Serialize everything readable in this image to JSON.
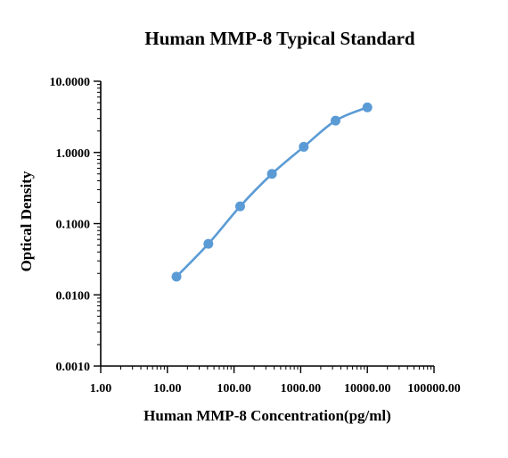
{
  "chart_data": {
    "type": "line",
    "title": "Human MMP-8 Typical Standard",
    "xlabel": "Human MMP-8 Concentration(pg/ml)",
    "ylabel": "Optical Density",
    "x_scale": "log",
    "y_scale": "log",
    "xlim": [
      1,
      100000
    ],
    "ylim": [
      0.001,
      10
    ],
    "x_ticks": [
      {
        "value": 1,
        "label": "1.00"
      },
      {
        "value": 10,
        "label": "10.00"
      },
      {
        "value": 100,
        "label": "100.00"
      },
      {
        "value": 1000,
        "label": "1000.00"
      },
      {
        "value": 10000,
        "label": "10000.00"
      },
      {
        "value": 100000,
        "label": "100000.00"
      }
    ],
    "y_ticks": [
      {
        "value": 0.001,
        "label": "0.0010"
      },
      {
        "value": 0.01,
        "label": "0.0100"
      },
      {
        "value": 0.1,
        "label": "0.1000"
      },
      {
        "value": 1,
        "label": "1.0000"
      },
      {
        "value": 10,
        "label": "10.0000"
      }
    ],
    "grid": false,
    "series": [
      {
        "color": "#5b9bd5",
        "x": [
          13.7,
          41.2,
          123.5,
          370.4,
          1111.1,
          3333.3,
          10000
        ],
        "y": [
          0.018,
          0.052,
          0.175,
          0.5,
          1.2,
          2.8,
          4.3
        ]
      }
    ]
  }
}
